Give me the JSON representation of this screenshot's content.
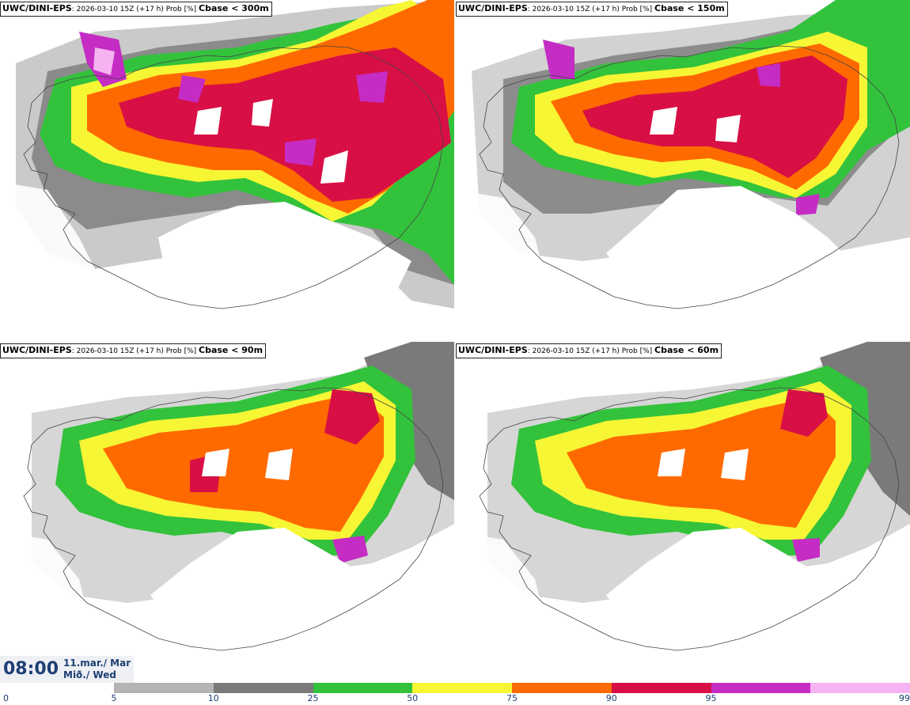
{
  "panels": [
    {
      "model": "UWC/DINI-EPS",
      "meta": ": 2026-03-10 15Z (+17 h) Prob [%] ",
      "threshold": "Cbase < 300m"
    },
    {
      "model": "UWC/DINI-EPS",
      "meta": ": 2026-03-10 15Z (+17 h) Prob [%] ",
      "threshold": "Cbase < 150m"
    },
    {
      "model": "UWC/DINI-EPS",
      "meta": ": 2026-03-10 15Z (+17 h) Prob [%] ",
      "threshold": "Cbase < 90m"
    },
    {
      "model": "UWC/DINI-EPS",
      "meta": ": 2026-03-10 15Z (+17 h) Prob [%] ",
      "threshold": "Cbase < 60m"
    }
  ],
  "valid_time": {
    "time": "08:00",
    "date_line1": "11.mar./ Mar",
    "date_line2": "Mið./ Wed"
  },
  "colorbar": {
    "ticks": [
      "0",
      "5",
      "10",
      "25",
      "50",
      "75",
      "90",
      "95",
      "99"
    ],
    "colors": [
      "#b4b4b4",
      "#7a7a7a",
      "#33c23c",
      "#f6f634",
      "#ff6a00",
      "#d80f45",
      "#c42cc4",
      "#f5b3f2"
    ]
  }
}
